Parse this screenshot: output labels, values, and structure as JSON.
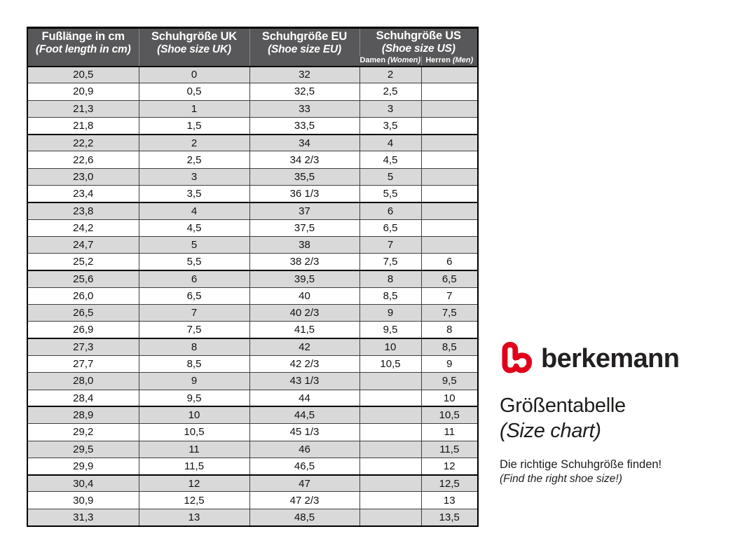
{
  "brand": {
    "name": "berkemann",
    "logo_color": "#e2001a"
  },
  "panel": {
    "title": "Größentabelle",
    "subtitle": "(Size chart)",
    "tagline_de": "Die richtige Schuhgröße finden!",
    "tagline_en": "(Find the right shoe size!)"
  },
  "table": {
    "headers": {
      "foot_length": {
        "de": "Fußlänge in cm",
        "en": "(Foot length in cm)"
      },
      "uk": {
        "de": "Schuhgröße UK",
        "en": "(Shoe size UK)"
      },
      "eu": {
        "de": "Schuhgröße EU",
        "en": "(Shoe size EU)"
      },
      "us": {
        "de": "Schuhgröße US",
        "en": "(Shoe size US)"
      },
      "us_women": {
        "de": "Damen",
        "en": "(Women)"
      },
      "us_men": {
        "de": "Herren",
        "en": "(Men)"
      }
    },
    "rows": [
      [
        "20,5",
        "0",
        "32",
        "2",
        ""
      ],
      [
        "20,9",
        "0,5",
        "32,5",
        "2,5",
        ""
      ],
      [
        "21,3",
        "1",
        "33",
        "3",
        ""
      ],
      [
        "21,8",
        "1,5",
        "33,5",
        "3,5",
        ""
      ],
      [
        "22,2",
        "2",
        "34",
        "4",
        ""
      ],
      [
        "22,6",
        "2,5",
        "34 2/3",
        "4,5",
        ""
      ],
      [
        "23,0",
        "3",
        "35,5",
        "5",
        ""
      ],
      [
        "23,4",
        "3,5",
        "36 1/3",
        "5,5",
        ""
      ],
      [
        "23,8",
        "4",
        "37",
        "6",
        ""
      ],
      [
        "24,2",
        "4,5",
        "37,5",
        "6,5",
        ""
      ],
      [
        "24,7",
        "5",
        "38",
        "7",
        ""
      ],
      [
        "25,2",
        "5,5",
        "38 2/3",
        "7,5",
        "6"
      ],
      [
        "25,6",
        "6",
        "39,5",
        "8",
        "6,5"
      ],
      [
        "26,0",
        "6,5",
        "40",
        "8,5",
        "7"
      ],
      [
        "26,5",
        "7",
        "40 2/3",
        "9",
        "7,5"
      ],
      [
        "26,9",
        "7,5",
        "41,5",
        "9,5",
        "8"
      ],
      [
        "27,3",
        "8",
        "42",
        "10",
        "8,5"
      ],
      [
        "27,7",
        "8,5",
        "42 2/3",
        "10,5",
        "9"
      ],
      [
        "28,0",
        "9",
        "43 1/3",
        "",
        "9,5"
      ],
      [
        "28,4",
        "9,5",
        "44",
        "",
        "10"
      ],
      [
        "28,9",
        "10",
        "44,5",
        "",
        "10,5"
      ],
      [
        "29,2",
        "10,5",
        "45 1/3",
        "",
        "11"
      ],
      [
        "29,5",
        "11",
        "46",
        "",
        "11,5"
      ],
      [
        "29,9",
        "11,5",
        "46,5",
        "",
        "12"
      ],
      [
        "30,4",
        "12",
        "47",
        "",
        "12,5"
      ],
      [
        "30,9",
        "12,5",
        "47 2/3",
        "",
        "13"
      ],
      [
        "31,3",
        "13",
        "48,5",
        "",
        "13,5"
      ]
    ]
  },
  "colors": {
    "header_bg": "#58585a",
    "row_alt": "#d9d9d9",
    "border": "#000000",
    "accent_red": "#e2001a"
  }
}
